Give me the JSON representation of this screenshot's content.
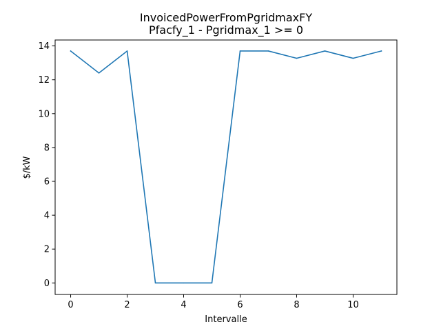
{
  "chart_data": {
    "type": "line",
    "title": "InvoicedPowerFromPgridmaxFY",
    "subtitle": "Pfacfy_1 - Pgridmax_1 >= 0",
    "xlabel": "Intervalle",
    "ylabel": "$/kW",
    "xlim": [
      -0.55,
      11.55
    ],
    "ylim": [
      -0.68,
      14.35
    ],
    "xticks": [
      0,
      2,
      4,
      6,
      8,
      10
    ],
    "yticks": [
      0,
      2,
      4,
      6,
      8,
      10,
      12,
      14
    ],
    "grid": false,
    "x": [
      0,
      1,
      2,
      3,
      4,
      5,
      6,
      7,
      8,
      9,
      10,
      11
    ],
    "series": [
      {
        "color": "#1f77b4",
        "values": [
          13.7,
          12.4,
          13.7,
          0,
          0,
          0,
          13.7,
          13.7,
          13.27,
          13.7,
          13.27,
          13.7
        ]
      }
    ]
  }
}
